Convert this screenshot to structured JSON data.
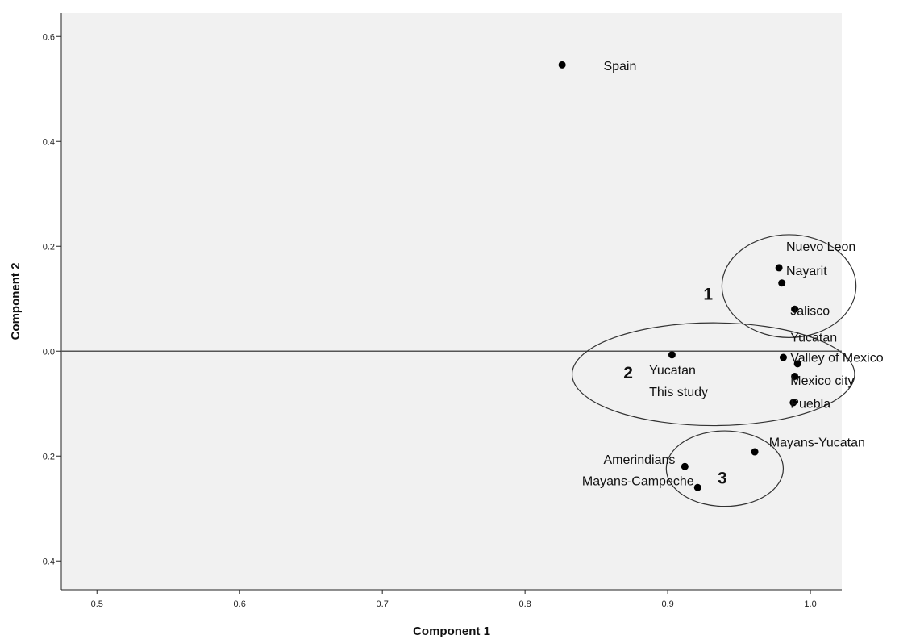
{
  "chart_data": {
    "type": "scatter",
    "xlabel": "Component 1",
    "ylabel": "Component 2",
    "xlim": [
      0.475,
      1.022
    ],
    "ylim": [
      -0.455,
      0.645
    ],
    "xticks": [
      0.5,
      0.6,
      0.7,
      0.8,
      0.9,
      1.0
    ],
    "xtick_labels": [
      "0.5",
      "0.6",
      "0.7",
      "0.8",
      "0.9",
      "1.0"
    ],
    "yticks": [
      0.6,
      0.4,
      0.2,
      0.0,
      -0.2,
      -0.4
    ],
    "ytick_labels": [
      "0.6",
      "0.4",
      "0.2",
      "0.0",
      "-0.2",
      "-0.4"
    ],
    "reference_line_y": 0.0,
    "grid": false,
    "points": [
      {
        "x": 0.826,
        "y": 0.546
      },
      {
        "x": 0.978,
        "y": 0.159
      },
      {
        "x": 0.98,
        "y": 0.13
      },
      {
        "x": 0.989,
        "y": 0.08
      },
      {
        "x": 0.981,
        "y": -0.012
      },
      {
        "x": 0.991,
        "y": -0.024
      },
      {
        "x": 0.989,
        "y": -0.048
      },
      {
        "x": 0.988,
        "y": -0.098
      },
      {
        "x": 0.903,
        "y": -0.007
      },
      {
        "x": 0.961,
        "y": -0.192
      },
      {
        "x": 0.912,
        "y": -0.22
      },
      {
        "x": 0.921,
        "y": -0.26
      }
    ],
    "annotations": [
      {
        "text": "Spain",
        "x": 0.855,
        "y": 0.536
      },
      {
        "text": "Nuevo Leon",
        "x": 0.983,
        "y": 0.191
      },
      {
        "text": "Nayarit",
        "x": 0.983,
        "y": 0.145
      },
      {
        "text": "Jalisco",
        "x": 0.986,
        "y": 0.069
      },
      {
        "text": "Yucatan",
        "x": 0.986,
        "y": 0.018
      },
      {
        "text": "Valley of Mexico",
        "x": 0.986,
        "y": -0.02
      },
      {
        "text": "Mexico city",
        "x": 0.986,
        "y": -0.064
      },
      {
        "text": "Puebla",
        "x": 0.986,
        "y": -0.108
      },
      {
        "text": "Yucatan",
        "x": 0.887,
        "y": -0.044
      },
      {
        "text": "This study",
        "x": 0.887,
        "y": -0.086
      },
      {
        "text": "Mayans-Yucatan",
        "x": 0.971,
        "y": -0.182
      },
      {
        "text": "Amerindians",
        "x": 0.855,
        "y": -0.215
      },
      {
        "text": "Mayans-Campeche",
        "x": 0.84,
        "y": -0.256
      }
    ],
    "groups": [
      {
        "label": "1",
        "label_x": 0.925,
        "label_y": 0.098,
        "cx": 0.985,
        "cy": 0.124,
        "rx": 0.047,
        "ry": 0.098
      },
      {
        "label": "2",
        "label_x": 0.869,
        "label_y": -0.052,
        "cx": 0.932,
        "cy": -0.044,
        "rx": 0.099,
        "ry": 0.098
      },
      {
        "label": "3",
        "label_x": 0.935,
        "label_y": -0.253,
        "cx": 0.94,
        "cy": -0.224,
        "rx": 0.041,
        "ry": 0.072
      }
    ]
  }
}
